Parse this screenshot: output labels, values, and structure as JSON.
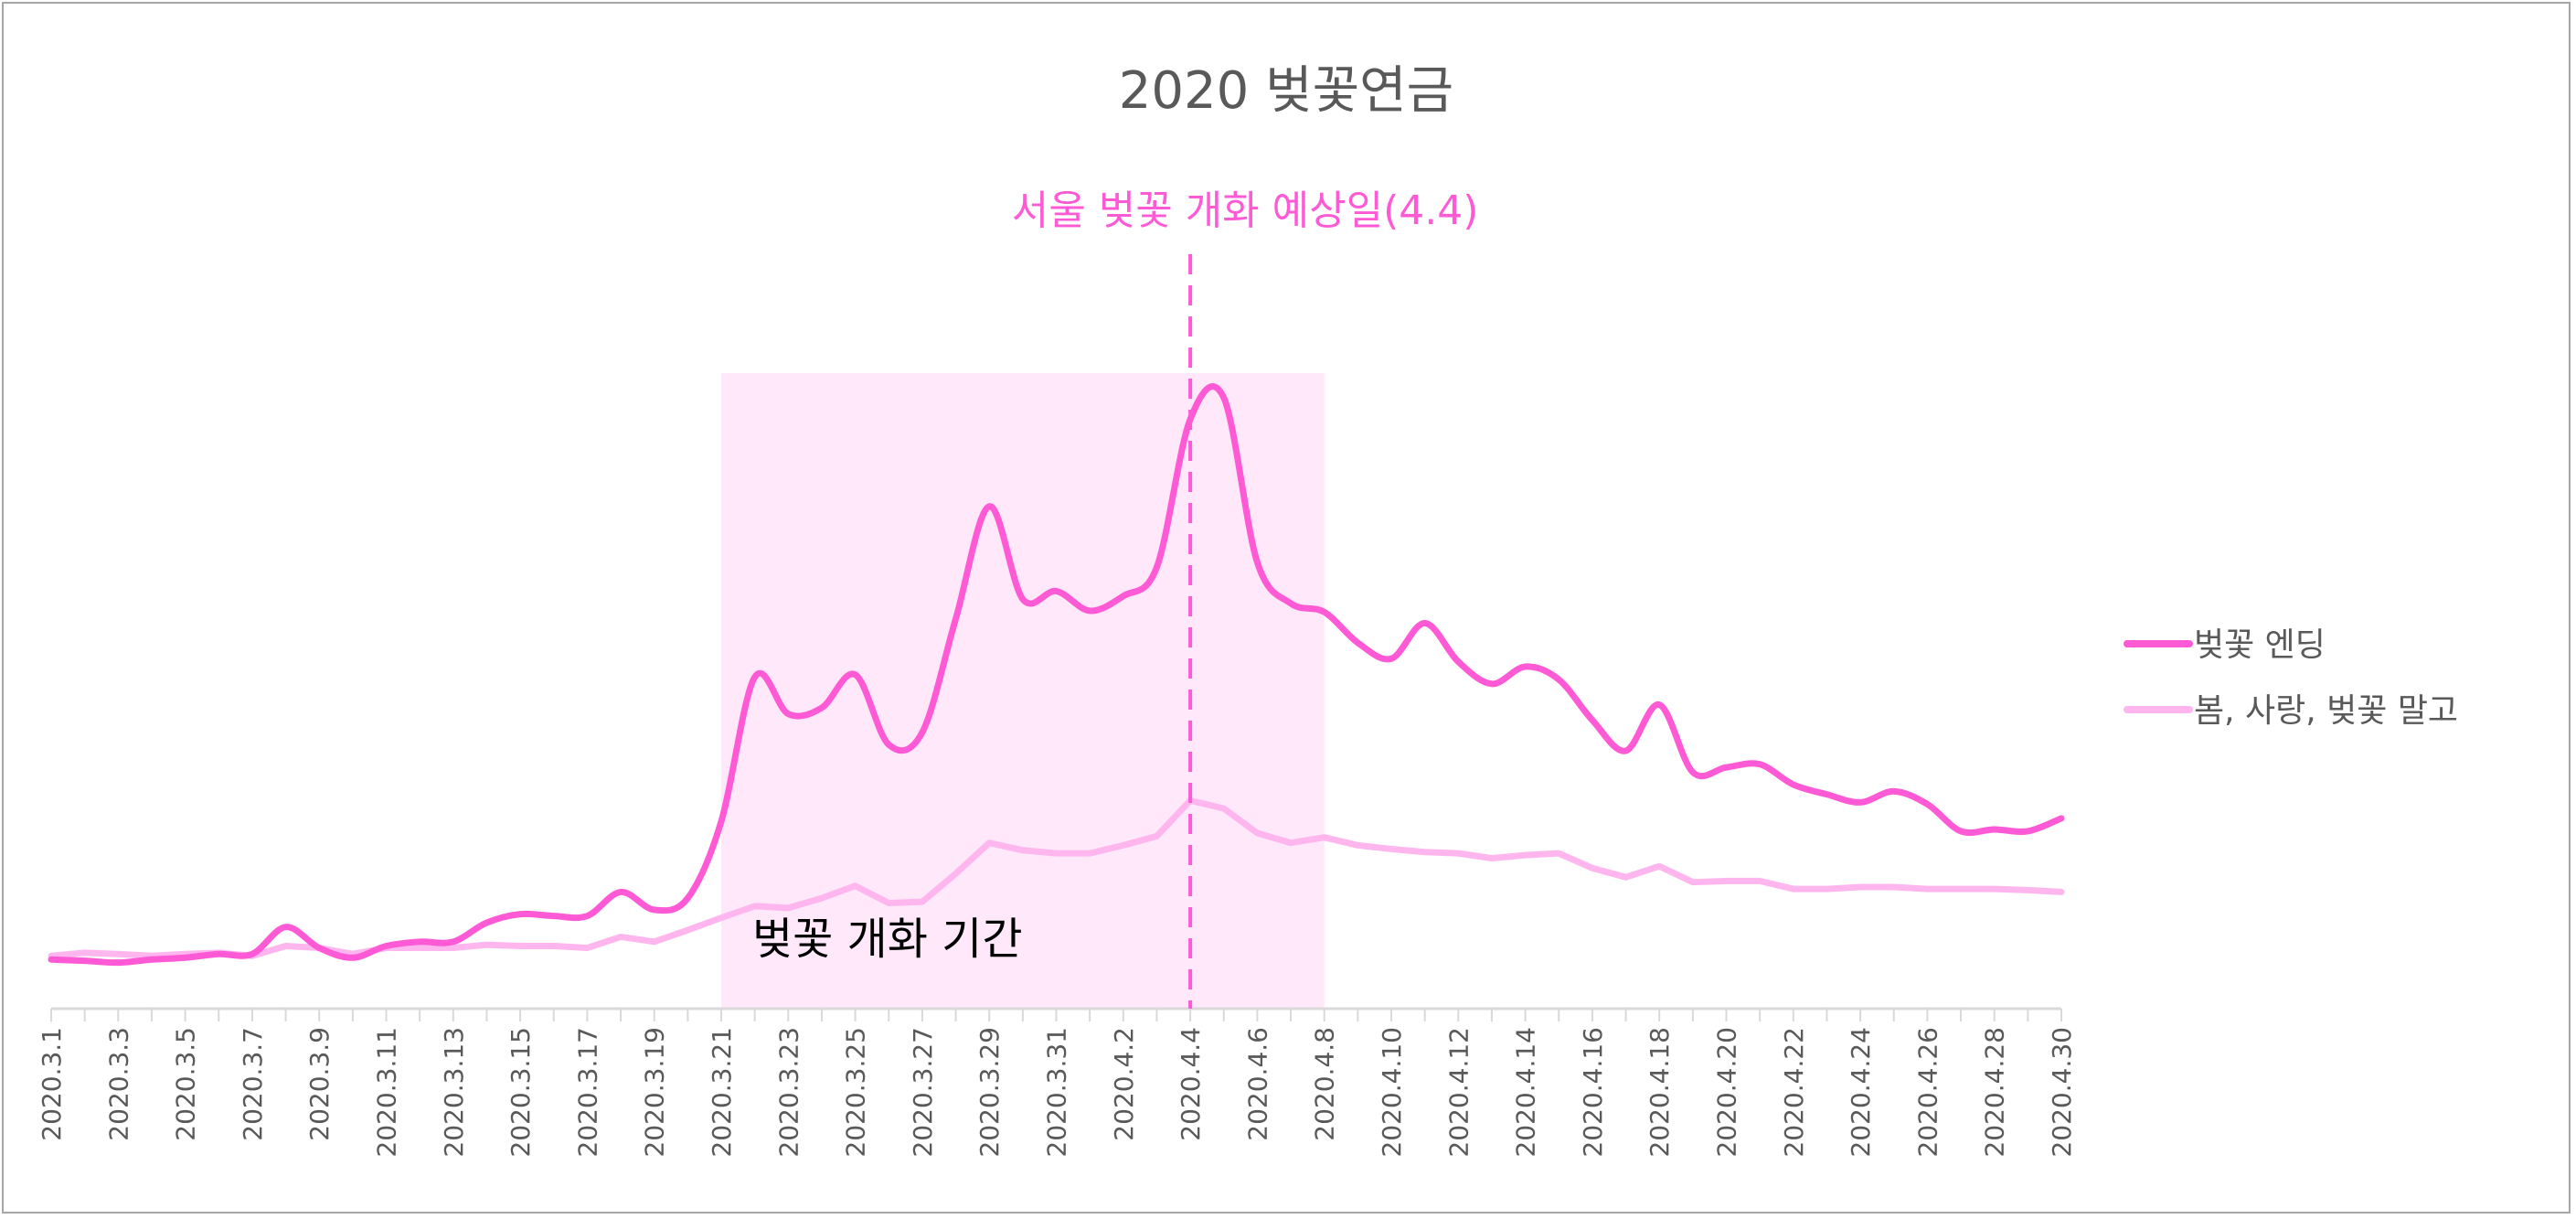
{
  "chart_data": {
    "type": "line",
    "title": "2020 벚꽃연금",
    "xlabel": "",
    "ylabel": "",
    "y_axis_shown": false,
    "ylim": [
      0,
      105
    ],
    "grid": false,
    "legend_position": "right",
    "x": [
      "2020.3.1",
      "2020.3.2",
      "2020.3.3",
      "2020.3.4",
      "2020.3.5",
      "2020.3.6",
      "2020.3.7",
      "2020.3.8",
      "2020.3.9",
      "2020.3.10",
      "2020.3.11",
      "2020.3.12",
      "2020.3.13",
      "2020.3.14",
      "2020.3.15",
      "2020.3.16",
      "2020.3.17",
      "2020.3.18",
      "2020.3.19",
      "2020.3.20",
      "2020.3.21",
      "2020.3.22",
      "2020.3.23",
      "2020.3.24",
      "2020.3.25",
      "2020.3.26",
      "2020.3.27",
      "2020.3.28",
      "2020.3.29",
      "2020.3.30",
      "2020.3.31",
      "2020.4.1",
      "2020.4.2",
      "2020.4.3",
      "2020.4.4",
      "2020.4.5",
      "2020.4.6",
      "2020.4.7",
      "2020.4.8",
      "2020.4.9",
      "2020.4.10",
      "2020.4.11",
      "2020.4.12",
      "2020.4.13",
      "2020.4.14",
      "2020.4.15",
      "2020.4.16",
      "2020.4.17",
      "2020.4.18",
      "2020.4.19",
      "2020.4.20",
      "2020.4.21",
      "2020.4.22",
      "2020.4.23",
      "2020.4.24",
      "2020.4.25",
      "2020.4.26",
      "2020.4.27",
      "2020.4.28",
      "2020.4.29",
      "2020.4.30"
    ],
    "tick_labels": [
      "2020.3.1",
      "2020.3.3",
      "2020.3.5",
      "2020.3.7",
      "2020.3.9",
      "2020.3.11",
      "2020.3.13",
      "2020.3.15",
      "2020.3.17",
      "2020.3.19",
      "2020.3.21",
      "2020.3.23",
      "2020.3.25",
      "2020.3.27",
      "2020.3.29",
      "2020.3.31",
      "2020.4.2",
      "2020.4.4",
      "2020.4.6",
      "2020.4.8",
      "2020.4.10",
      "2020.4.12",
      "2020.4.14",
      "2020.4.16",
      "2020.4.18",
      "2020.4.20",
      "2020.4.22",
      "2020.4.24",
      "2020.4.26",
      "2020.4.28",
      "2020.4.30"
    ],
    "series": [
      {
        "name": "벚꽃 엔딩",
        "color": "#ff5ad6",
        "smooth": true,
        "values": [
          8,
          7.8,
          7.5,
          8,
          8.3,
          8.9,
          8.9,
          13.3,
          9.9,
          8.3,
          10.2,
          10.9,
          10.9,
          14,
          15.4,
          15.1,
          15.1,
          19,
          16.1,
          18,
          30.5,
          54,
          48,
          49,
          54.4,
          43,
          45,
          63.5,
          81.8,
          66.7,
          68,
          64.8,
          67.2,
          71.9,
          96,
          99.5,
          72.7,
          66,
          64.6,
          59.6,
          57,
          62.8,
          56.5,
          52.9,
          55.7,
          53.6,
          47,
          42,
          49.5,
          38.5,
          39.3,
          39.8,
          36.5,
          34.9,
          33.6,
          35.4,
          33.3,
          28.9,
          29.2,
          28.9,
          31
        ]
      },
      {
        "name": "봄, 사랑, 벚꽃 말고",
        "color": "#ffb6ef",
        "smooth": false,
        "values": [
          8.6,
          9.1,
          8.9,
          8.6,
          8.9,
          9.1,
          8.6,
          10.2,
          9.9,
          8.9,
          9.9,
          9.9,
          9.9,
          10.4,
          10.2,
          10.2,
          9.9,
          11.7,
          10.9,
          12.8,
          14.8,
          16.7,
          16.4,
          18,
          20,
          17.2,
          17.4,
          22,
          27,
          25.8,
          25.3,
          25.3,
          26.6,
          28.1,
          33.9,
          32.6,
          28.6,
          27,
          27.9,
          26.6,
          26,
          25.5,
          25.3,
          24.5,
          25,
          25.3,
          22.9,
          21.4,
          23.2,
          20.6,
          20.8,
          20.8,
          19.5,
          19.5,
          19.8,
          19.8,
          19.5,
          19.5,
          19.5,
          19.3,
          19
        ]
      }
    ],
    "annotations": {
      "shaded_period": {
        "label": "벚꽃 개화 기간",
        "from": "2020.3.21",
        "to": "2020.4.8",
        "color": "#fee8fa"
      },
      "marker_line": {
        "label": "서울 벚꽃 개화 예상일(4.4)",
        "at": "2020.4.4",
        "color": "#ff5ad6",
        "style": "dashed"
      }
    }
  }
}
